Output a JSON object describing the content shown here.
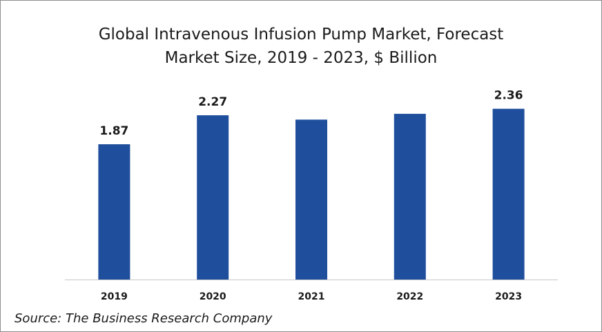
{
  "chart_data": {
    "type": "bar",
    "title": "Global Intravenous Infusion Pump Market, Forecast",
    "subtitle": "Market Size, 2019 - 2023, $ Billion",
    "categories": [
      "2019",
      "2020",
      "2021",
      "2022",
      "2023"
    ],
    "values": [
      1.87,
      2.27,
      2.21,
      2.29,
      2.36
    ],
    "data_labels": [
      "1.87",
      "2.27",
      "",
      "",
      "2.36"
    ],
    "ylim": [
      0,
      2.9
    ],
    "grid": false,
    "legend": "none",
    "bar_color": "#1f4e9c"
  },
  "source": "Source: The Business Research Company"
}
